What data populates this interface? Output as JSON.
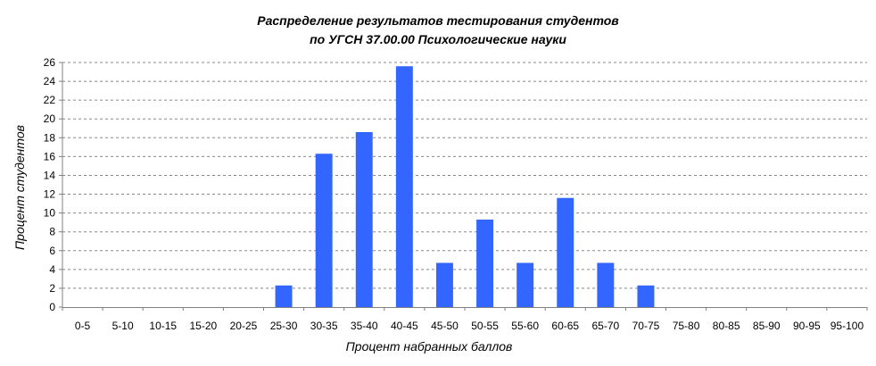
{
  "chart_data": {
    "type": "bar",
    "title": [
      "Распределение результатов тестирования студентов",
      "по УГСН 37.00.00 Психологические науки"
    ],
    "xlabel": "Процент набранных баллов",
    "ylabel": "Процент студентов",
    "categories": [
      "0-5",
      "5-10",
      "10-15",
      "15-20",
      "20-25",
      "25-30",
      "30-35",
      "35-40",
      "40-45",
      "45-50",
      "50-55",
      "55-60",
      "60-65",
      "65-70",
      "70-75",
      "75-80",
      "80-85",
      "85-90",
      "90-95",
      "95-100"
    ],
    "values": [
      0,
      0,
      0,
      0,
      0,
      2.3,
      16.3,
      18.6,
      25.6,
      4.7,
      9.3,
      4.7,
      11.6,
      4.7,
      2.3,
      0,
      0,
      0,
      0,
      0
    ],
    "ylim": [
      0,
      26
    ],
    "yticks": [
      0,
      2,
      4,
      6,
      8,
      10,
      12,
      14,
      16,
      18,
      20,
      22,
      24,
      26
    ],
    "grid": true,
    "bar_color": "#3366ff"
  }
}
